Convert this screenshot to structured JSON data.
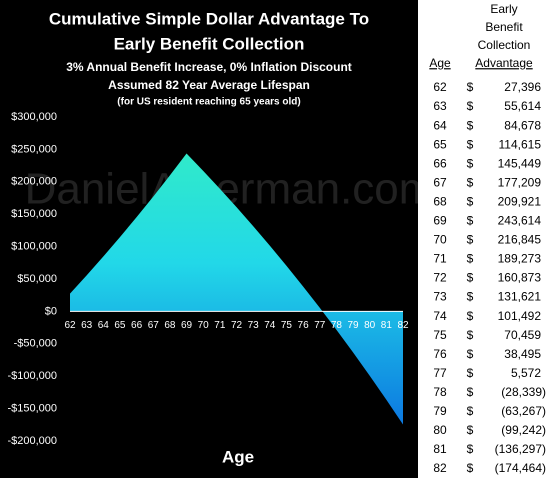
{
  "chart_data": {
    "type": "area",
    "title": [
      "Cumulative Simple Dollar Advantage To",
      "Early Benefit Collection"
    ],
    "subtitle": [
      "3% Annual Benefit Increase, 0% Inflation Discount",
      "Assumed 82 Year Average Lifespan",
      "(for US resident reaching 65 years old)"
    ],
    "watermark": "DanielAmerman.com",
    "xlabel": "Age",
    "x": [
      62,
      63,
      64,
      65,
      66,
      67,
      68,
      69,
      70,
      71,
      72,
      73,
      74,
      75,
      76,
      77,
      78,
      79,
      80,
      81,
      82
    ],
    "values": [
      27396,
      55614,
      84678,
      114615,
      145449,
      177209,
      209921,
      243614,
      216845,
      189273,
      160873,
      131621,
      101492,
      70459,
      38495,
      5572,
      -28339,
      -63267,
      -99242,
      -136297,
      -174464
    ],
    "value_labels": [
      "27,396",
      "55,614",
      "84,678",
      "114,615",
      "145,449",
      "177,209",
      "209,921",
      "243,614",
      "216,845",
      "189,273",
      "160,873",
      "131,621",
      "101,492",
      "70,459",
      "38,495",
      "5,572",
      "(28,339)",
      "(63,267)",
      "(99,242)",
      "(136,297)",
      "(174,464)"
    ],
    "xlim": [
      62,
      82
    ],
    "ylim": [
      -200000,
      300000
    ],
    "yticks": [
      {
        "value": -200000,
        "label": "-$200,000"
      },
      {
        "value": -150000,
        "label": "-$150,000"
      },
      {
        "value": -100000,
        "label": "-$100,000"
      },
      {
        "value": -50000,
        "label": "-$50,000"
      },
      {
        "value": 0,
        "label": "$0"
      },
      {
        "value": 50000,
        "label": "$50,000"
      },
      {
        "value": 100000,
        "label": "$100,000"
      },
      {
        "value": 150000,
        "label": "$150,000"
      },
      {
        "value": 200000,
        "label": "$200,000"
      },
      {
        "value": 250000,
        "label": "$250,000"
      },
      {
        "value": 300000,
        "label": "$300,000"
      }
    ]
  },
  "table": {
    "age_header": "Age",
    "value_header": [
      "Early",
      "Benefit",
      "Collection",
      "Advantage"
    ],
    "currency": "$"
  }
}
